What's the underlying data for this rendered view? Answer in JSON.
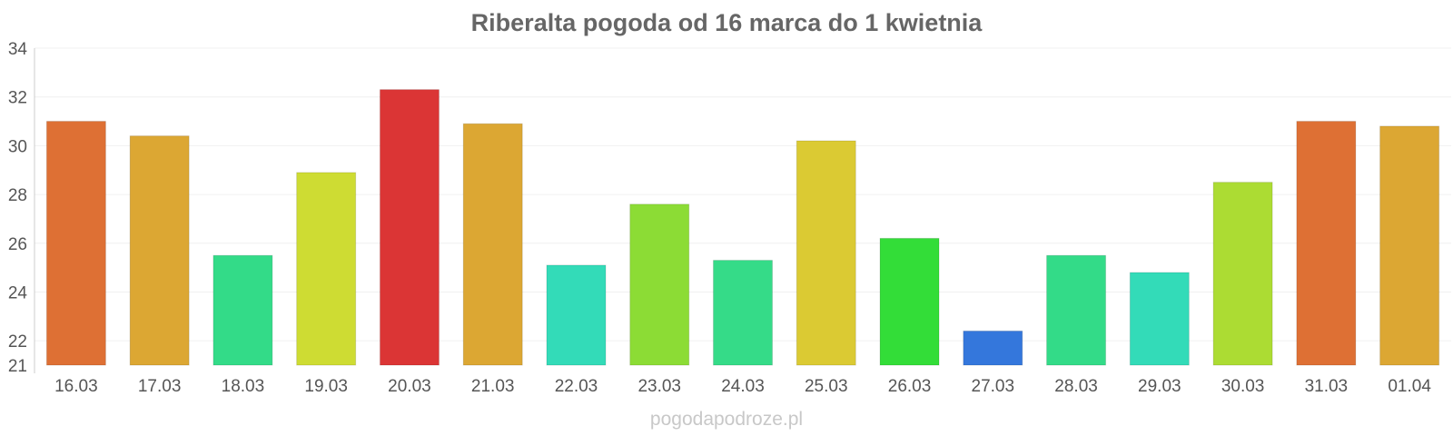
{
  "chart_data": {
    "type": "bar",
    "title": "Riberalta pogoda od 16 marca do 1 kwietnia",
    "xlabel": "",
    "ylabel": "",
    "categories": [
      "16.03",
      "17.03",
      "18.03",
      "19.03",
      "20.03",
      "21.03",
      "22.03",
      "23.03",
      "24.03",
      "25.03",
      "26.03",
      "27.03",
      "28.03",
      "29.03",
      "30.03",
      "31.03",
      "01.04"
    ],
    "values": [
      31,
      30.4,
      25.5,
      28.9,
      32.3,
      30.9,
      25.1,
      27.6,
      25.3,
      30.2,
      26.2,
      22.4,
      25.5,
      24.8,
      28.5,
      31,
      30.8
    ],
    "colors": [
      "#de7034",
      "#dca733",
      "#33db88",
      "#cedc33",
      "#db3535",
      "#dca733",
      "#33dbb8",
      "#8cdc35",
      "#35db88",
      "#dbca33",
      "#33dd38",
      "#3477dc",
      "#33db88",
      "#33dbb8",
      "#acdc33",
      "#de7034",
      "#dca733"
    ],
    "ylim": [
      21,
      34
    ],
    "yticks": [
      21,
      22,
      24,
      26,
      28,
      30,
      32,
      34
    ],
    "grid": true,
    "legend": "none"
  },
  "watermark": "pogodapodroze.pl"
}
